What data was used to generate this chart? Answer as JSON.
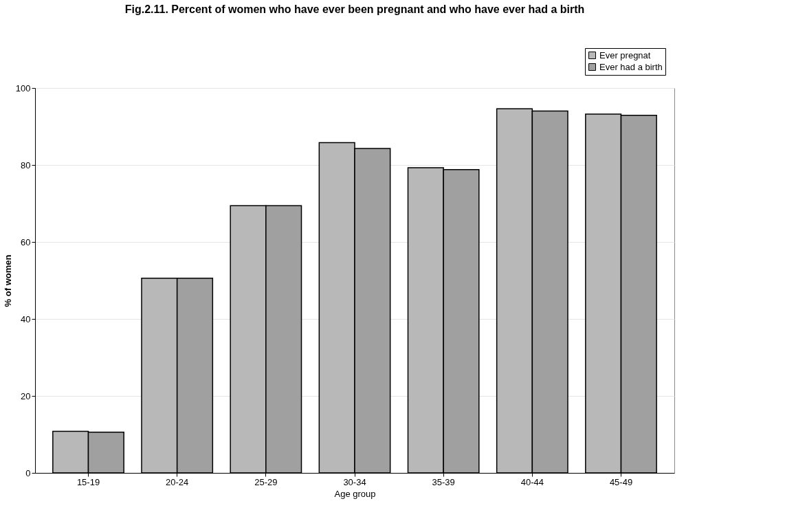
{
  "chart_data": {
    "type": "bar",
    "title": "Fig.2.11. Percent of women who have ever been pregnant and who have ever had a birth",
    "xlabel": "Age group",
    "ylabel": "% of women",
    "categories": [
      "15-19",
      "20-24",
      "25-29",
      "30-34",
      "35-39",
      "40-44",
      "45-49"
    ],
    "series": [
      {
        "name": "Ever pregnat",
        "color": "#b8b8b8",
        "values": [
          10.8,
          50.6,
          69.4,
          85.8,
          79.3,
          94.6,
          93.2
        ]
      },
      {
        "name": "Ever had a birth",
        "color": "#a0a0a0",
        "values": [
          10.6,
          50.6,
          69.4,
          84.3,
          78.8,
          94.0,
          92.9
        ]
      }
    ],
    "ylim": [
      0,
      100
    ],
    "yticks": [
      0,
      20,
      40,
      60,
      80,
      100
    ],
    "grid": "y",
    "legend": "top right"
  }
}
